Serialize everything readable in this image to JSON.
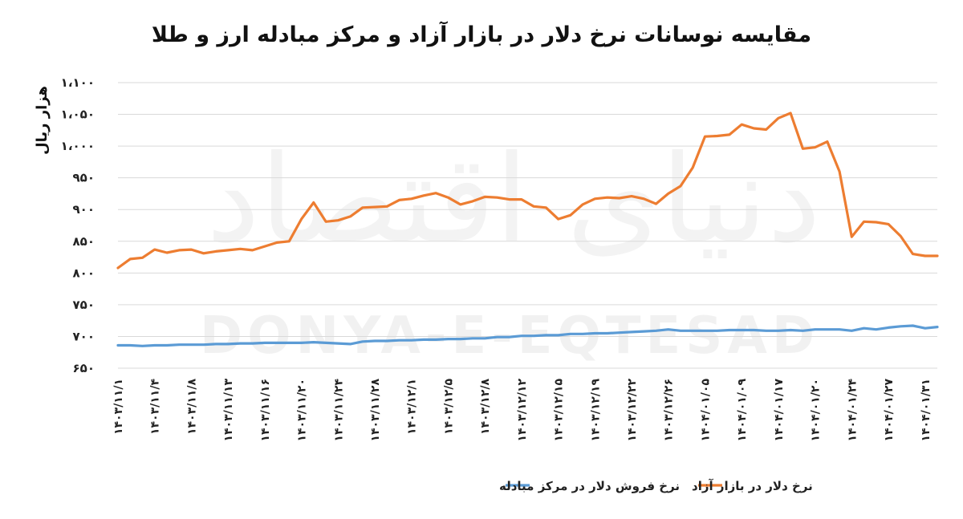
{
  "chart_data": {
    "type": "line",
    "title": "مقایسه نوسانات نرخ دلار در بازار آزاد و مرکز مبادله ارز و طلا",
    "ylabel": "هزار ریال",
    "xlabel": "",
    "ylim": [
      650,
      1100
    ],
    "y_ticks": [
      "۶۵۰",
      "۷۰۰",
      "۷۵۰",
      "۸۰۰",
      "۸۵۰",
      "۹۰۰",
      "۹۵۰",
      "۱،۰۰۰",
      "۱،۰۵۰",
      "۱،۱۰۰"
    ],
    "x_tick_labels": [
      "۱۴۰۳/۱۱/۱",
      "۱۴۰۳/۱۱/۴",
      "۱۴۰۳/۱۱/۸",
      "۱۴۰۳/۱۱/۱۳",
      "۱۴۰۳/۱۱/۱۶",
      "۱۴۰۳/۱۱/۲۰",
      "۱۴۰۳/۱۱/۲۴",
      "۱۴۰۳/۱۱/۲۸",
      "۱۴۰۳/۱۲/۱",
      "۱۴۰۳/۱۲/۵",
      "۱۴۰۳/۱۲/۸",
      "۱۴۰۳/۱۲/۱۲",
      "۱۴۰۳/۱۲/۱۵",
      "۱۴۰۳/۱۲/۱۹",
      "۱۴۰۳/۱۲/۲۲",
      "۱۴۰۳/۱۲/۲۶",
      "۱۴۰۴/۰۱/۰۵",
      "۱۴۰۴/۰۱/۰۹",
      "۱۴۰۴/۰۱/۱۷",
      "۱۴۰۴/۰۱/۲۰",
      "۱۴۰۴/۰۱/۲۴",
      "۱۴۰۴/۰۱/۲۷",
      "۱۴۰۴/۰۱/۳۱"
    ],
    "tick_every": 3,
    "grid": true,
    "legend_position": "bottom",
    "series": [
      {
        "name": "نرخ دلار در بازار آزاد",
        "color": "#ED7D31",
        "values": [
          808,
          822,
          824,
          837,
          832,
          836,
          837,
          831,
          834,
          836,
          838,
          836,
          842,
          848,
          850,
          885,
          911,
          881,
          883,
          889,
          903,
          904,
          905,
          915,
          917,
          922,
          926,
          919,
          908,
          913,
          920,
          919,
          916,
          916,
          905,
          903,
          885,
          891,
          908,
          917,
          919,
          918,
          921,
          917,
          909,
          925,
          937,
          966,
          1015,
          1016,
          1018,
          1034,
          1028,
          1026,
          1044,
          1052,
          996,
          998,
          1007,
          960,
          857,
          881,
          880,
          877,
          858,
          830,
          827,
          827
        ]
      },
      {
        "name": "نرخ فروش دلار در مرکز مبادله",
        "color": "#5B9BD5",
        "values": [
          686,
          686,
          685,
          686,
          686,
          687,
          687,
          687,
          688,
          688,
          689,
          689,
          690,
          690,
          690,
          690,
          691,
          690,
          689,
          688,
          692,
          693,
          693,
          694,
          694,
          695,
          695,
          696,
          696,
          697,
          697,
          699,
          699,
          701,
          701,
          702,
          702,
          704,
          704,
          705,
          705,
          706,
          707,
          708,
          709,
          711,
          709,
          709,
          709,
          709,
          710,
          710,
          710,
          709,
          709,
          710,
          709,
          711,
          711,
          711,
          709,
          713,
          711,
          714,
          716,
          717,
          713,
          715
        ]
      }
    ]
  },
  "watermark": {
    "latin": "DONYA-E-EQTESAD",
    "persian": "دنیای اقتصاد"
  }
}
